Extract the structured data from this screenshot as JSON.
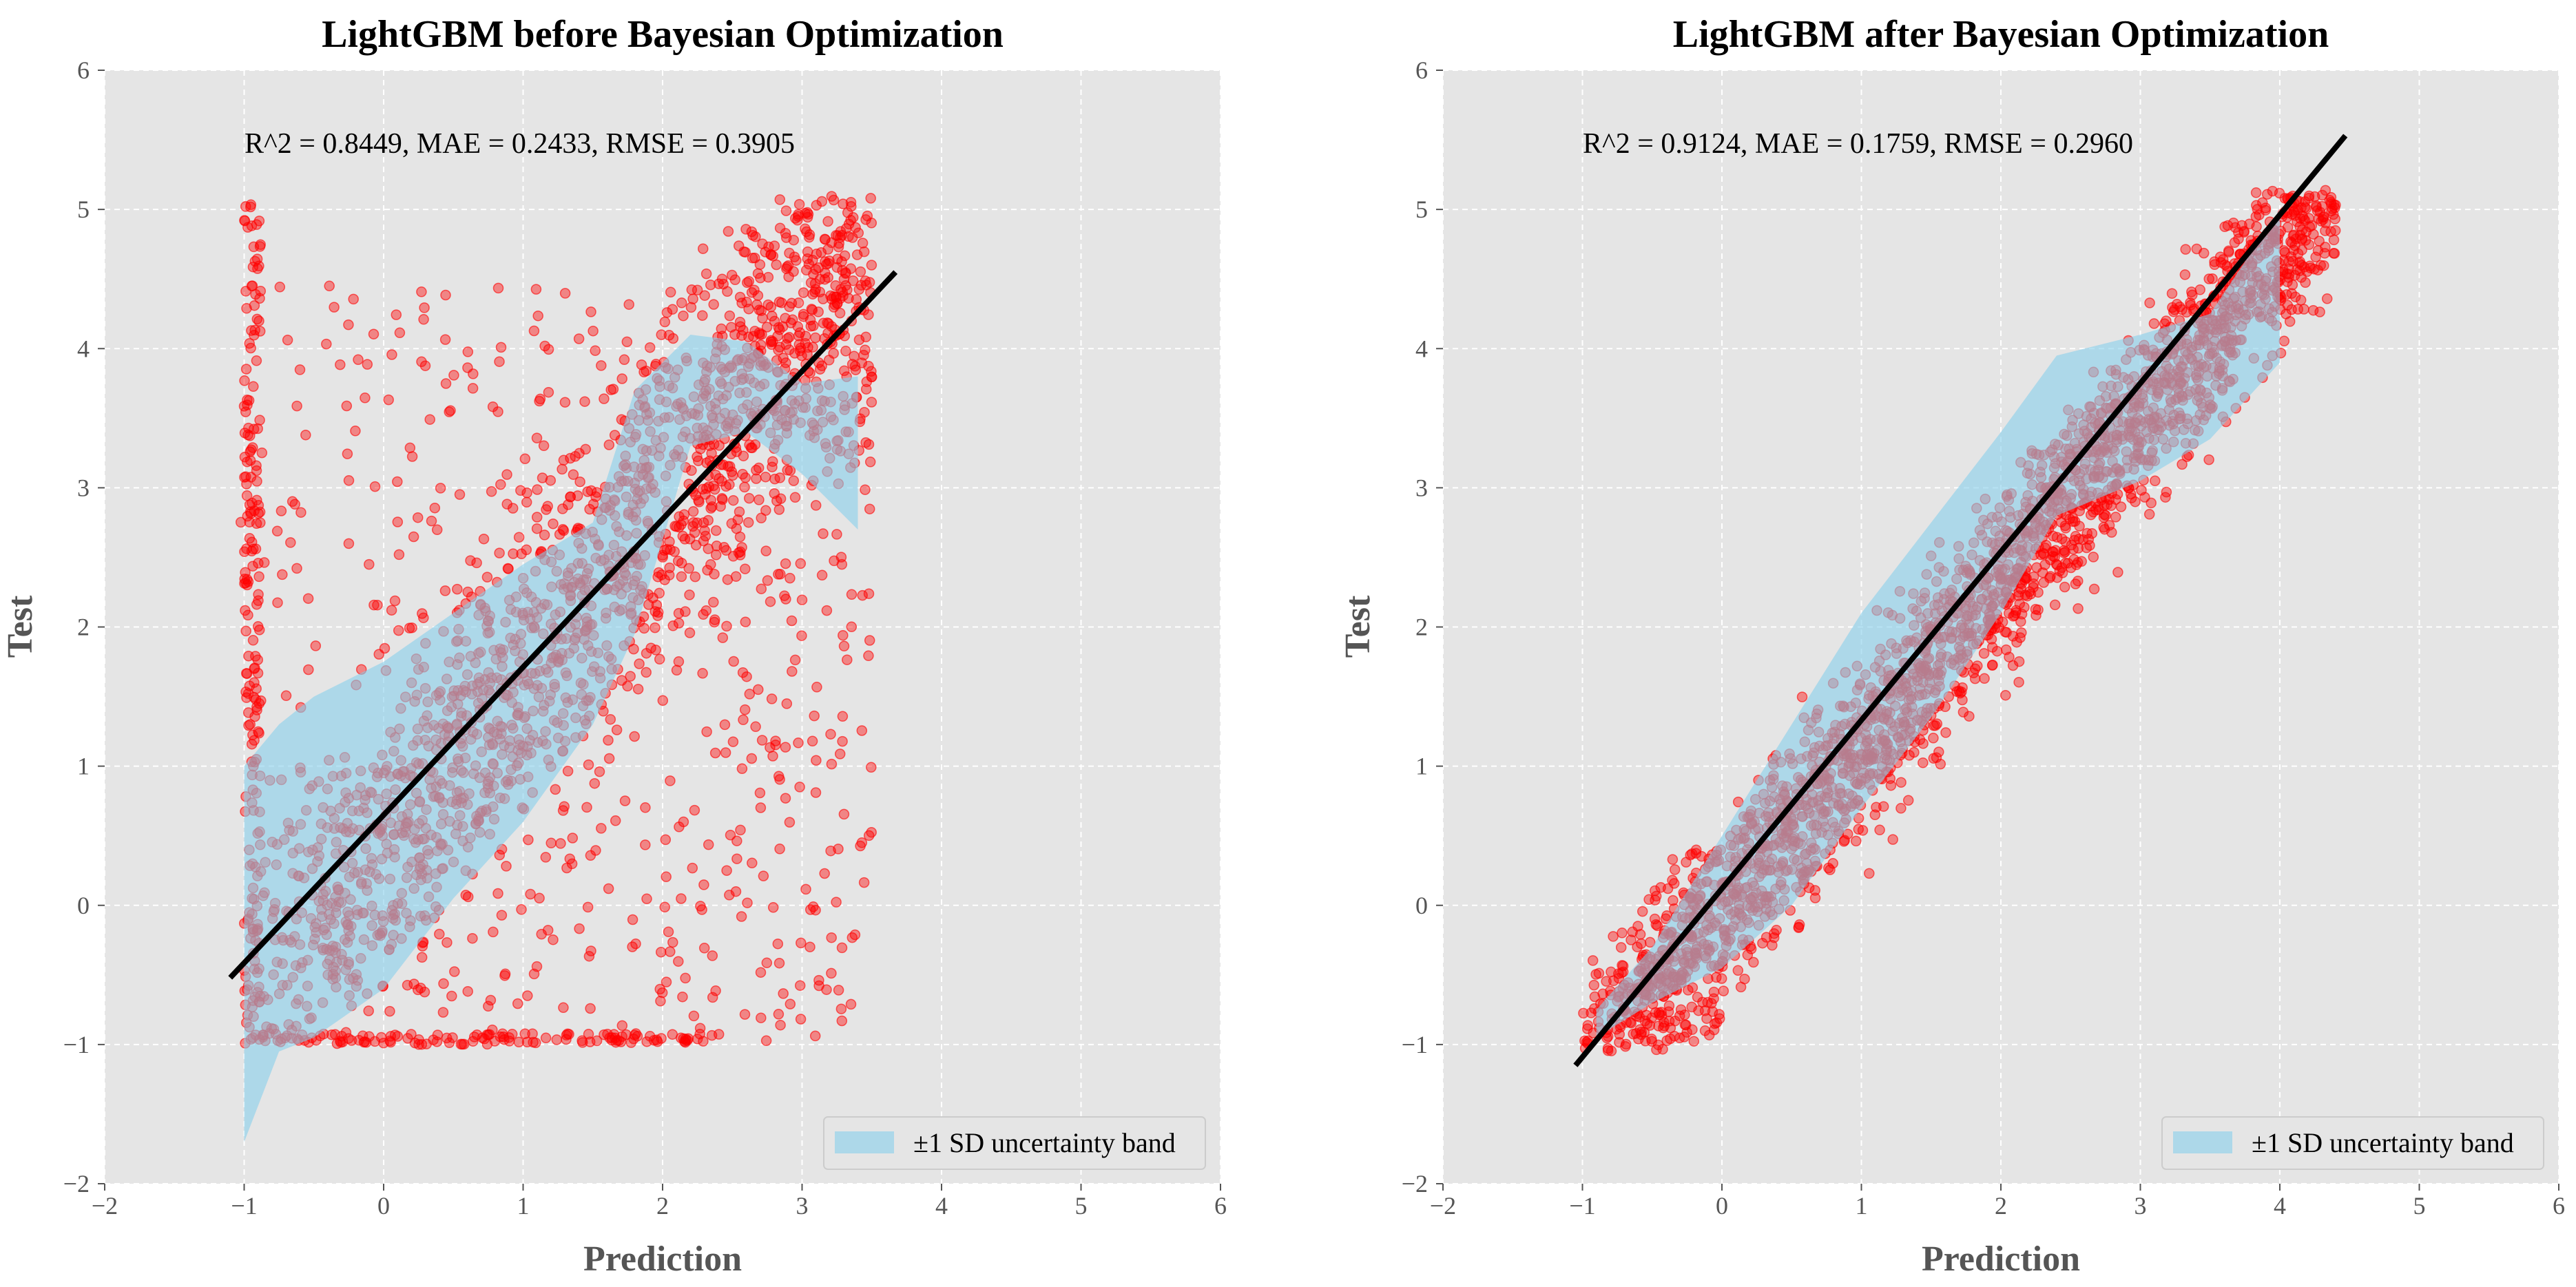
{
  "chart_data": [
    {
      "type": "scatter",
      "title": "LightGBM before Bayesian Optimization",
      "xlabel": "Prediction",
      "ylabel": "Test",
      "xlim": [
        -2,
        6
      ],
      "ylim": [
        -2,
        6
      ],
      "xticks": [
        "−2",
        "−1",
        "0",
        "1",
        "2",
        "3",
        "4",
        "5",
        "6"
      ],
      "yticks": [
        "−2",
        "−1",
        "0",
        "1",
        "2",
        "3",
        "4",
        "5",
        "6"
      ],
      "grid": true,
      "legend_placement": "lower-right",
      "metrics_text": "R^2 = 0.8449, MAE = 0.2433, RMSE = 0.3905",
      "metrics": {
        "r2": 0.8449,
        "mae": 0.2433,
        "rmse": 0.3905
      },
      "fit_line": {
        "x": [
          -1.1,
          3.67
        ],
        "y": [
          -0.52,
          4.55
        ],
        "color": "#000000"
      },
      "band": {
        "label": "±1 SD uncertainty band",
        "color": "#87ceeb",
        "x": [
          -1.0,
          -0.75,
          -0.5,
          0.0,
          0.5,
          1.0,
          1.5,
          1.8,
          2.2,
          2.6,
          3.0,
          3.4
        ],
        "upper": [
          1.0,
          1.3,
          1.5,
          1.75,
          2.1,
          2.45,
          2.75,
          3.7,
          4.1,
          4.05,
          3.75,
          3.8
        ],
        "lower": [
          -1.7,
          -1.05,
          -0.95,
          -0.6,
          0.05,
          0.6,
          1.3,
          1.95,
          3.3,
          3.4,
          3.1,
          2.7
        ]
      },
      "scatter": {
        "color": "#ff0000",
        "shape": "ridge",
        "spread": 0.85,
        "x_range": [
          -1.05,
          3.5
        ],
        "y_range": [
          -1.0,
          5.1
        ],
        "count": 2400
      }
    },
    {
      "type": "scatter",
      "title": "LightGBM after Bayesian Optimization",
      "xlabel": "Prediction",
      "ylabel": "Test",
      "xlim": [
        -2,
        6
      ],
      "ylim": [
        -2,
        6
      ],
      "xticks": [
        "−2",
        "−1",
        "0",
        "1",
        "2",
        "3",
        "4",
        "5",
        "6"
      ],
      "yticks": [
        "−2",
        "−1",
        "0",
        "1",
        "2",
        "3",
        "4",
        "5",
        "6"
      ],
      "grid": true,
      "legend_placement": "lower-right",
      "metrics_text": "R^2 = 0.9124, MAE = 0.1759, RMSE = 0.2960",
      "metrics": {
        "r2": 0.9124,
        "mae": 0.1759,
        "rmse": 0.296
      },
      "fit_line": {
        "x": [
          -1.05,
          4.47
        ],
        "y": [
          -1.15,
          5.53
        ],
        "color": "#000000"
      },
      "band": {
        "label": "±1 SD uncertainty band",
        "color": "#87ceeb",
        "x": [
          -0.9,
          -0.5,
          0.0,
          0.5,
          1.0,
          1.5,
          2.0,
          2.4,
          3.0,
          3.5,
          4.0
        ],
        "upper": [
          -0.75,
          -0.3,
          0.5,
          1.3,
          2.1,
          2.75,
          3.4,
          3.95,
          4.1,
          4.25,
          5.0
        ],
        "lower": [
          -0.95,
          -0.7,
          -0.45,
          0.0,
          0.7,
          1.35,
          2.1,
          2.8,
          3.05,
          3.35,
          3.9
        ]
      },
      "scatter": {
        "color": "#ff0000",
        "shape": "diagonal",
        "spread": 0.45,
        "x_range": [
          -1.0,
          4.4
        ],
        "y_range": [
          -1.05,
          5.15
        ],
        "count": 2400
      }
    }
  ]
}
